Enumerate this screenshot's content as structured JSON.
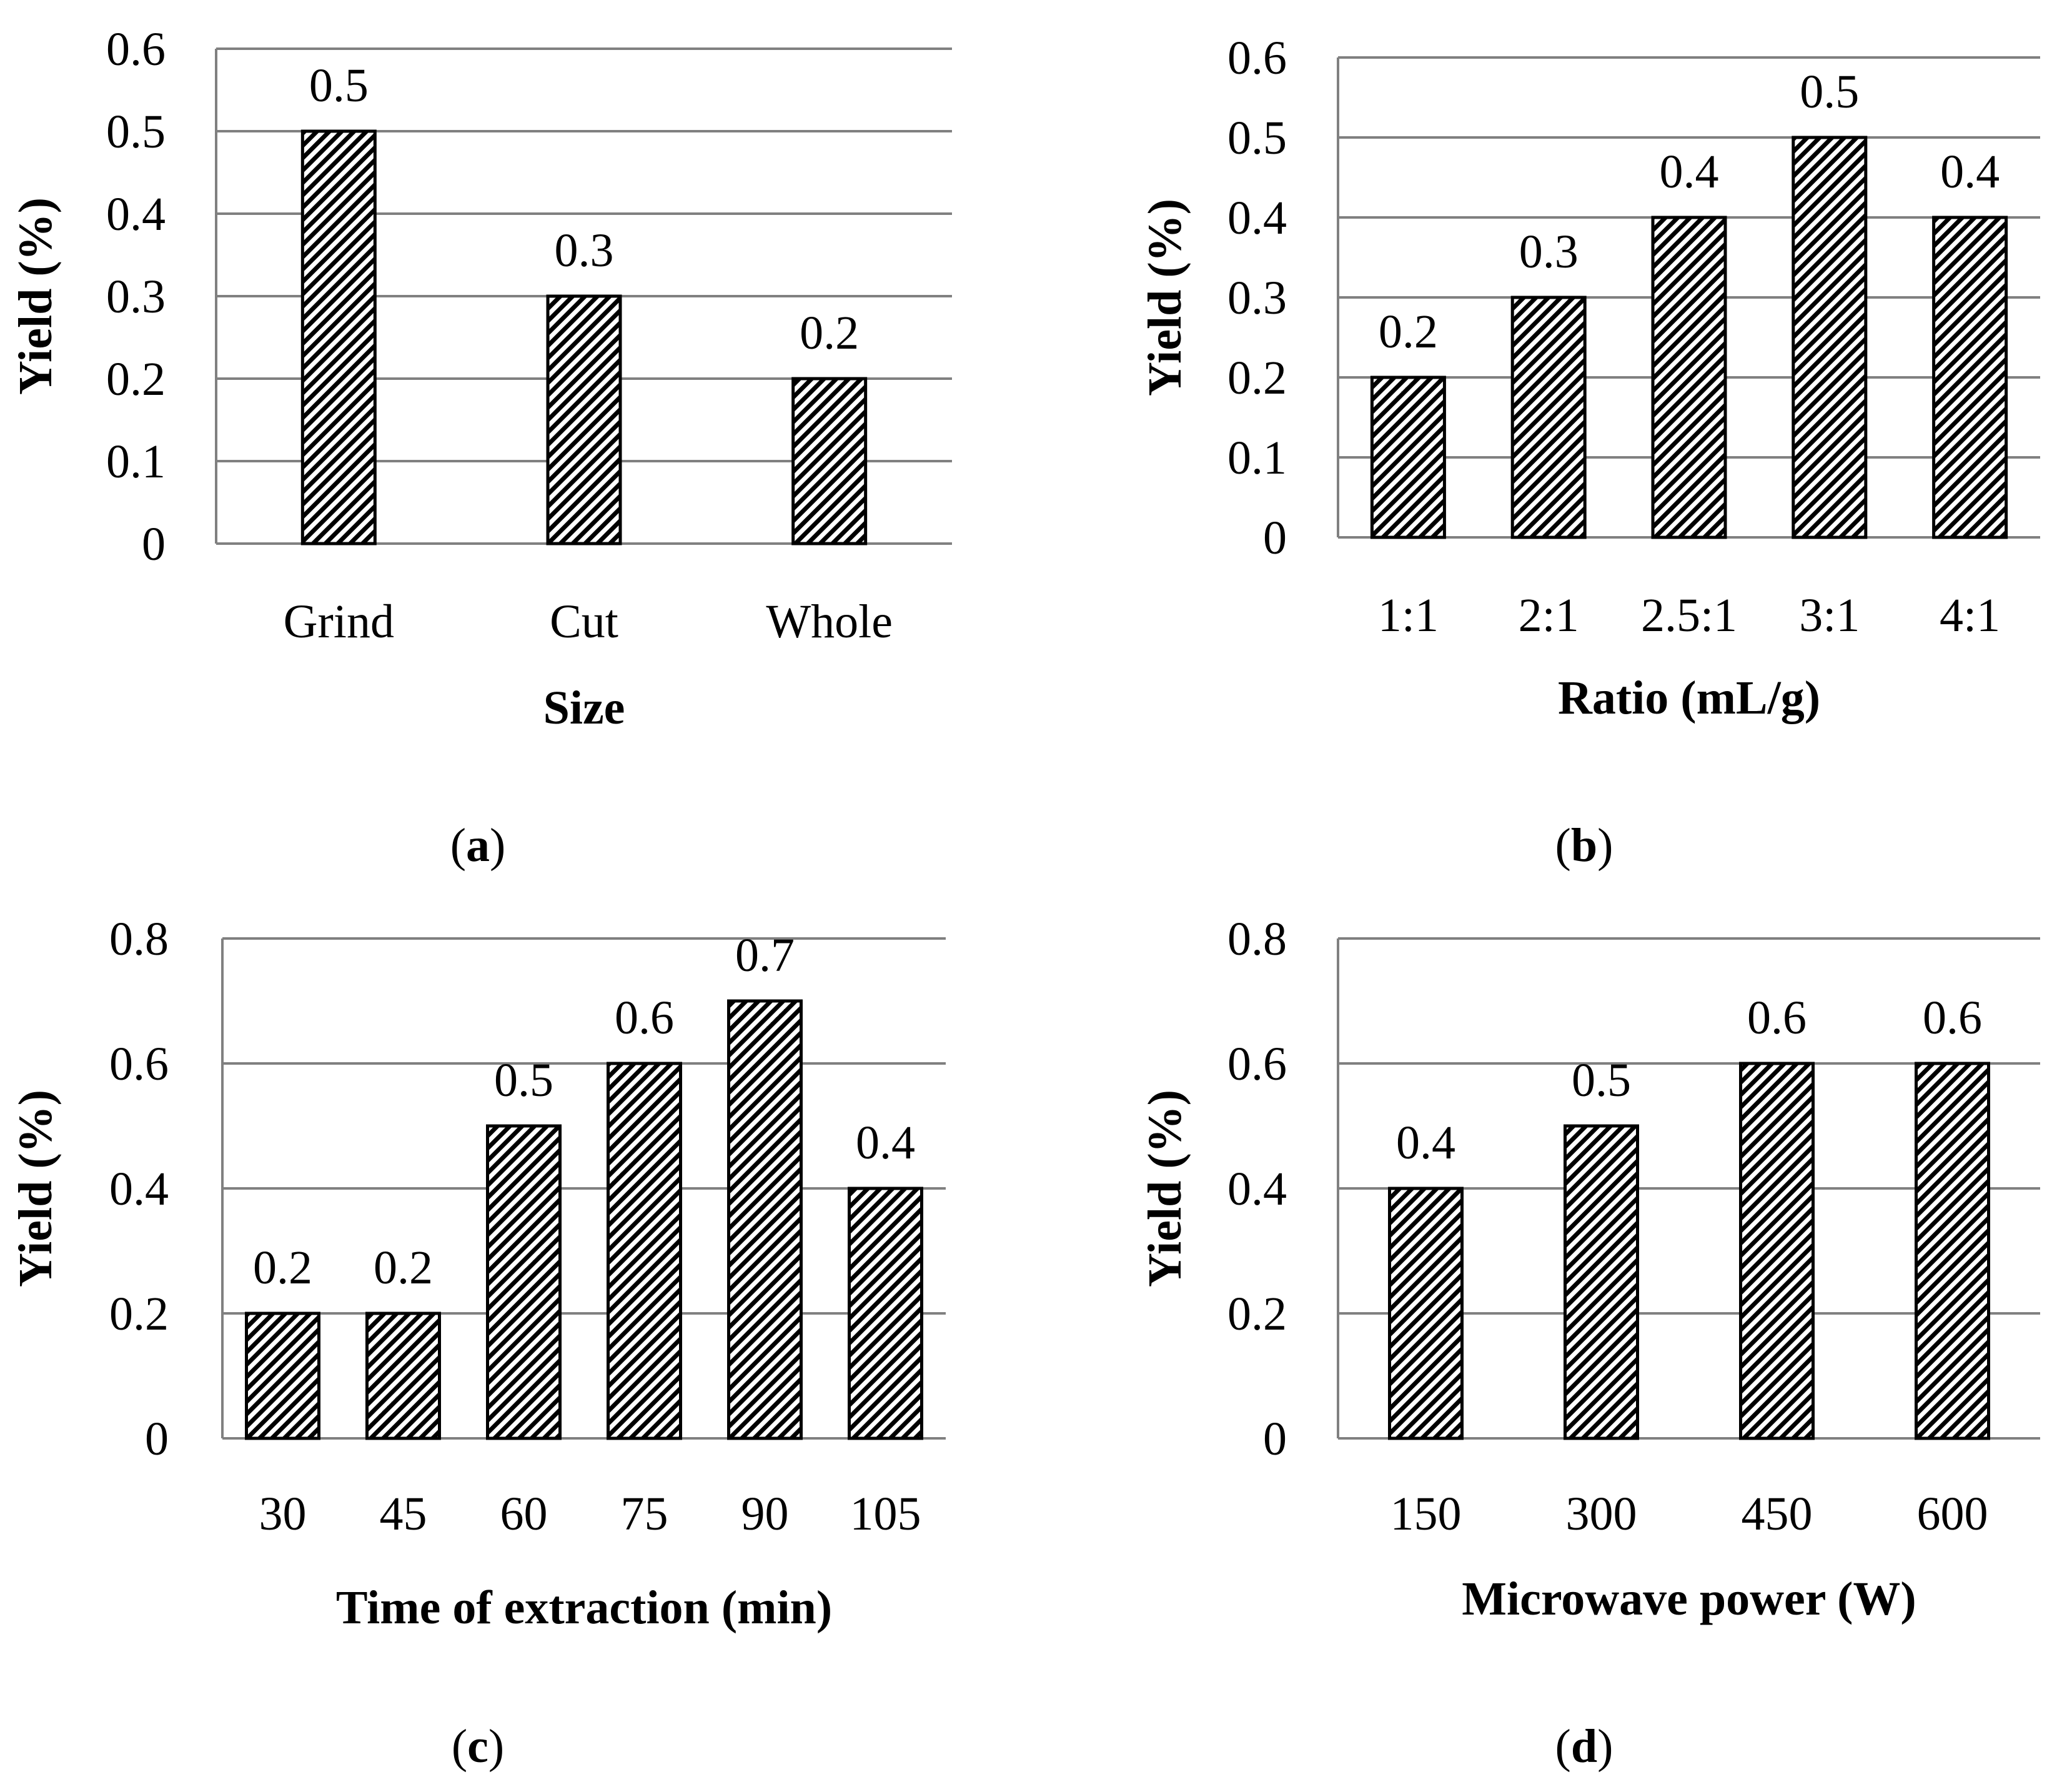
{
  "chart_data": [
    {
      "id": "a",
      "type": "bar",
      "panel_label": "a",
      "categories": [
        "Grind",
        "Cut",
        "Whole"
      ],
      "values": [
        0.5,
        0.3,
        0.2
      ],
      "data_labels": [
        "0.5",
        "0.3",
        "0.2"
      ],
      "xlabel": "Size",
      "ylabel": "Yield (%)",
      "ylim": [
        0,
        0.6
      ],
      "yticks": [
        "0",
        "0.1",
        "0.2",
        "0.3",
        "0.4",
        "0.5",
        "0.6"
      ],
      "grid": true,
      "pattern": "diagonal-hatch"
    },
    {
      "id": "b",
      "type": "bar",
      "panel_label": "b",
      "categories": [
        "1:1",
        "2:1",
        "2.5:1",
        "3:1",
        "4:1"
      ],
      "values": [
        0.2,
        0.3,
        0.4,
        0.5,
        0.4
      ],
      "data_labels": [
        "0.2",
        "0.3",
        "0.4",
        "0.5",
        "0.4"
      ],
      "xlabel": "Ratio (mL/g)",
      "ylabel": "Yield (%)",
      "ylim": [
        0,
        0.6
      ],
      "yticks": [
        "0",
        "0.1",
        "0.2",
        "0.3",
        "0.4",
        "0.5",
        "0.6"
      ],
      "grid": true,
      "pattern": "diagonal-hatch"
    },
    {
      "id": "c",
      "type": "bar",
      "panel_label": "c",
      "categories": [
        "30",
        "45",
        "60",
        "75",
        "90",
        "105"
      ],
      "values": [
        0.2,
        0.2,
        0.5,
        0.6,
        0.7,
        0.4
      ],
      "data_labels": [
        "0.2",
        "0.2",
        "0.5",
        "0.6",
        "0.7",
        "0.4"
      ],
      "xlabel": "Time of extraction (min)",
      "ylabel": "Yield (%)",
      "ylim": [
        0,
        0.8
      ],
      "yticks": [
        "0",
        "0.2",
        "0.4",
        "0.6",
        "0.8"
      ],
      "grid": true,
      "pattern": "diagonal-hatch"
    },
    {
      "id": "d",
      "type": "bar",
      "panel_label": "d",
      "categories": [
        "150",
        "300",
        "450",
        "600"
      ],
      "values": [
        0.4,
        0.5,
        0.6,
        0.6
      ],
      "data_labels": [
        "0.4",
        "0.5",
        "0.6",
        "0.6"
      ],
      "xlabel": "Microwave power (W)",
      "ylabel": "Yield (%)",
      "ylim": [
        0,
        0.8
      ],
      "yticks": [
        "0",
        "0.2",
        "0.4",
        "0.6",
        "0.8"
      ],
      "grid": true,
      "pattern": "diagonal-hatch"
    }
  ]
}
